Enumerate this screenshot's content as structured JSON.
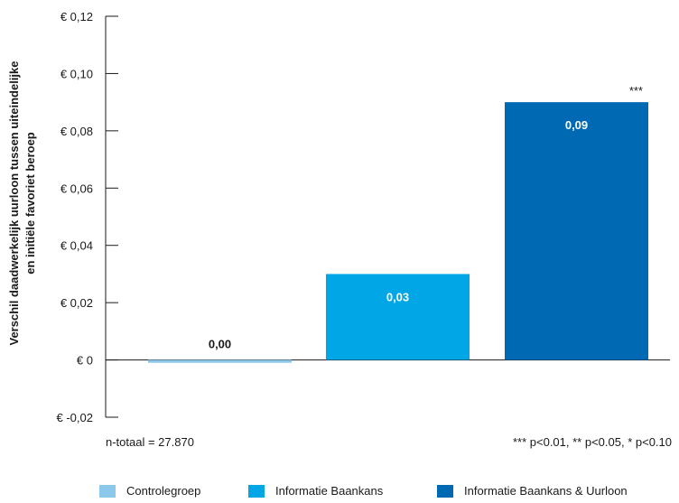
{
  "chart_data": {
    "type": "bar",
    "ylabel_line1": "Verschil daadwerkelijk uurloon tussen uiteindelijke",
    "ylabel_line2": "en initiële favoriet beroep",
    "ylim": [
      -0.02,
      0.12
    ],
    "yticks": [
      0.12,
      0.1,
      0.08,
      0.06,
      0.04,
      0.02,
      0,
      -0.02
    ],
    "ytick_labels": [
      "€ 0,12",
      "€ 0,10",
      "€ 0,08",
      "€ 0,06",
      "€ 0,04",
      "€ 0,02",
      "€ 0",
      "€ -0,02"
    ],
    "categories": [
      "Controlegroep",
      "Informatie Baankans",
      "Informatie Baankans & Uurloon"
    ],
    "values": [
      -0.001,
      0.03,
      0.09
    ],
    "data_labels": [
      "0,00",
      "0,03",
      "0,09"
    ],
    "significance": [
      "",
      "",
      "***"
    ],
    "colors": [
      "#8cc8ea",
      "#00a6e6",
      "#0069b4"
    ],
    "grid": false,
    "legend_position": "bottom",
    "note_left": "n-totaal = 27.870",
    "note_right": "*** p<0.01, ** p<0.05, * p<0.10"
  }
}
